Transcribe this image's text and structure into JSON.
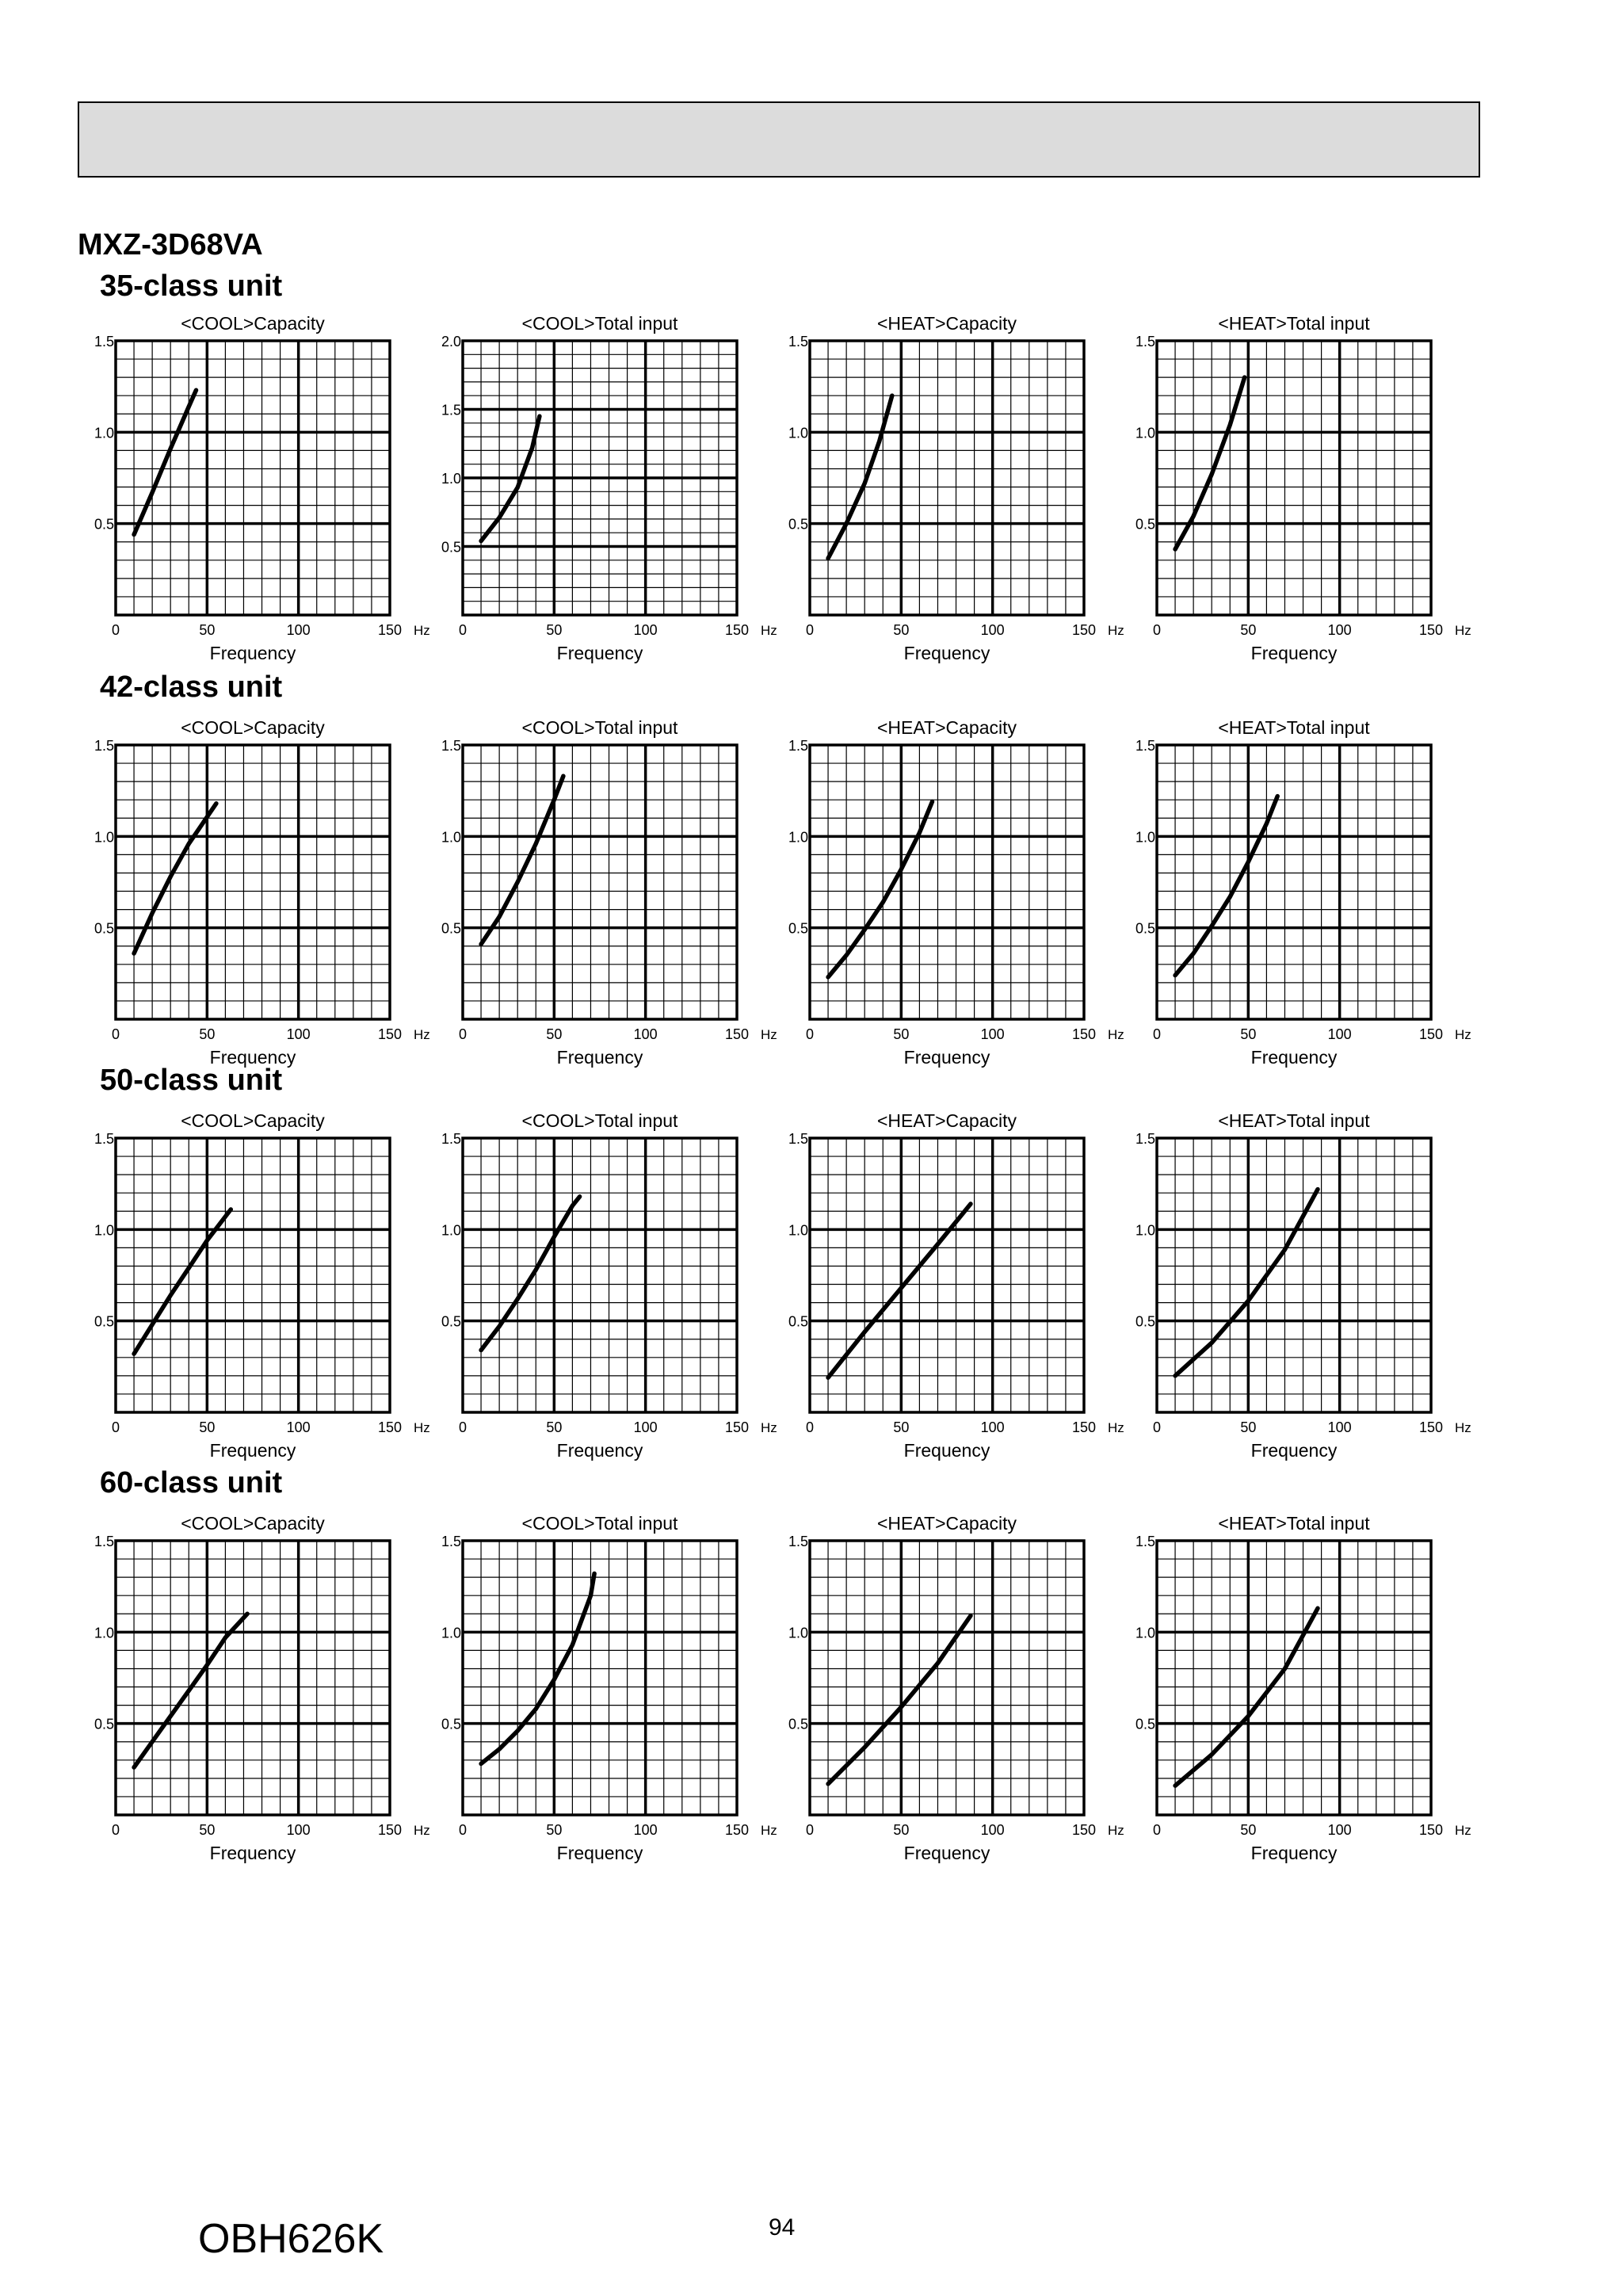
{
  "header": {
    "model": "MXZ-3D68VA"
  },
  "footer": {
    "doc_code": "OBH626K",
    "page_number": "94"
  },
  "chart_common": {
    "xlabel": "Frequency",
    "x_unit": "Hz",
    "x_ticks": [
      "0",
      "50",
      "100",
      "150"
    ],
    "xlim": [
      0,
      150
    ],
    "grid": true
  },
  "sections": [
    {
      "title": "35-class unit",
      "charts": [
        {
          "title": "<COOL>Capacity",
          "ylim": [
            0,
            1.5
          ],
          "y_ticks": [
            "0.5",
            "1.0",
            "1.5"
          ],
          "y_tick_values": [
            0.5,
            1.0,
            1.5
          ]
        },
        {
          "title": "<COOL>Total input",
          "ylim": [
            0,
            2.0
          ],
          "y_ticks": [
            "0.5",
            "1.0",
            "1.5",
            "2.0"
          ],
          "y_tick_values": [
            0.5,
            1.0,
            1.5,
            2.0
          ]
        },
        {
          "title": "<HEAT>Capacity",
          "ylim": [
            0,
            1.5
          ],
          "y_ticks": [
            "0.5",
            "1.0",
            "1.5"
          ],
          "y_tick_values": [
            0.5,
            1.0,
            1.5
          ]
        },
        {
          "title": "<HEAT>Total input",
          "ylim": [
            0,
            1.5
          ],
          "y_ticks": [
            "0.5",
            "1.0",
            "1.5"
          ],
          "y_tick_values": [
            0.5,
            1.0,
            1.5
          ]
        }
      ]
    },
    {
      "title": "42-class unit",
      "charts": [
        {
          "title": "<COOL>Capacity",
          "ylim": [
            0,
            1.5
          ],
          "y_ticks": [
            "0.5",
            "1.0",
            "1.5"
          ],
          "y_tick_values": [
            0.5,
            1.0,
            1.5
          ]
        },
        {
          "title": "<COOL>Total input",
          "ylim": [
            0,
            1.5
          ],
          "y_ticks": [
            "0.5",
            "1.0",
            "1.5"
          ],
          "y_tick_values": [
            0.5,
            1.0,
            1.5
          ]
        },
        {
          "title": "<HEAT>Capacity",
          "ylim": [
            0,
            1.5
          ],
          "y_ticks": [
            "0.5",
            "1.0",
            "1.5"
          ],
          "y_tick_values": [
            0.5,
            1.0,
            1.5
          ]
        },
        {
          "title": "<HEAT>Total input",
          "ylim": [
            0,
            1.5
          ],
          "y_ticks": [
            "0.5",
            "1.0",
            "1.5"
          ],
          "y_tick_values": [
            0.5,
            1.0,
            1.5
          ]
        }
      ]
    },
    {
      "title": "50-class unit",
      "charts": [
        {
          "title": "<COOL>Capacity",
          "ylim": [
            0,
            1.5
          ],
          "y_ticks": [
            "0.5",
            "1.0",
            "1.5"
          ],
          "y_tick_values": [
            0.5,
            1.0,
            1.5
          ]
        },
        {
          "title": "<COOL>Total input",
          "ylim": [
            0,
            1.5
          ],
          "y_ticks": [
            "0.5",
            "1.0",
            "1.5"
          ],
          "y_tick_values": [
            0.5,
            1.0,
            1.5
          ]
        },
        {
          "title": "<HEAT>Capacity",
          "ylim": [
            0,
            1.5
          ],
          "y_ticks": [
            "0.5",
            "1.0",
            "1.5"
          ],
          "y_tick_values": [
            0.5,
            1.0,
            1.5
          ]
        },
        {
          "title": "<HEAT>Total input",
          "ylim": [
            0,
            1.5
          ],
          "y_ticks": [
            "0.5",
            "1.0",
            "1.5"
          ],
          "y_tick_values": [
            0.5,
            1.0,
            1.5
          ]
        }
      ]
    },
    {
      "title": "60-class unit",
      "charts": [
        {
          "title": "<COOL>Capacity",
          "ylim": [
            0,
            1.5
          ],
          "y_ticks": [
            "0.5",
            "1.0",
            "1.5"
          ],
          "y_tick_values": [
            0.5,
            1.0,
            1.5
          ]
        },
        {
          "title": "<COOL>Total input",
          "ylim": [
            0,
            1.5
          ],
          "y_ticks": [
            "0.5",
            "1.0",
            "1.5"
          ],
          "y_tick_values": [
            0.5,
            1.0,
            1.5
          ]
        },
        {
          "title": "<HEAT>Capacity",
          "ylim": [
            0,
            1.5
          ],
          "y_ticks": [
            "0.5",
            "1.0",
            "1.5"
          ],
          "y_tick_values": [
            0.5,
            1.0,
            1.5
          ]
        },
        {
          "title": "<HEAT>Total input",
          "ylim": [
            0,
            1.5
          ],
          "y_ticks": [
            "0.5",
            "1.0",
            "1.5"
          ],
          "y_tick_values": [
            0.5,
            1.0,
            1.5
          ]
        }
      ]
    }
  ],
  "chart_data": [
    {
      "type": "line",
      "title": "<COOL>Capacity",
      "xlabel": "Frequency",
      "xlim": [
        0,
        150
      ],
      "ylim": [
        0,
        1.5
      ],
      "grid": true,
      "x": [
        10,
        20,
        30,
        40,
        44
      ],
      "y": [
        0.44,
        0.67,
        0.91,
        1.14,
        1.23
      ]
    },
    {
      "type": "line",
      "title": "<COOL>Total input",
      "xlabel": "Frequency",
      "xlim": [
        0,
        150
      ],
      "ylim": [
        0,
        2.0
      ],
      "grid": true,
      "x": [
        10,
        20,
        30,
        38,
        42
      ],
      "y": [
        0.54,
        0.71,
        0.93,
        1.22,
        1.45
      ]
    },
    {
      "type": "line",
      "title": "<HEAT>Capacity",
      "xlabel": "Frequency",
      "xlim": [
        0,
        150
      ],
      "ylim": [
        0,
        1.5
      ],
      "grid": true,
      "x": [
        10,
        20,
        30,
        38,
        45
      ],
      "y": [
        0.31,
        0.5,
        0.72,
        0.95,
        1.2
      ]
    },
    {
      "type": "line",
      "title": "<HEAT>Total input",
      "xlabel": "Frequency",
      "xlim": [
        0,
        150
      ],
      "ylim": [
        0,
        1.5
      ],
      "grid": true,
      "x": [
        10,
        20,
        30,
        40,
        48
      ],
      "y": [
        0.36,
        0.54,
        0.77,
        1.04,
        1.3
      ]
    },
    {
      "type": "line",
      "title": "<COOL>Capacity",
      "xlabel": "Frequency",
      "xlim": [
        0,
        150
      ],
      "ylim": [
        0,
        1.5
      ],
      "grid": true,
      "x": [
        10,
        20,
        30,
        40,
        55
      ],
      "y": [
        0.36,
        0.58,
        0.78,
        0.96,
        1.18
      ]
    },
    {
      "type": "line",
      "title": "<COOL>Total input",
      "xlabel": "Frequency",
      "xlim": [
        0,
        150
      ],
      "ylim": [
        0,
        1.5
      ],
      "grid": true,
      "x": [
        10,
        20,
        30,
        40,
        50,
        55
      ],
      "y": [
        0.41,
        0.56,
        0.75,
        0.96,
        1.2,
        1.33
      ]
    },
    {
      "type": "line",
      "title": "<HEAT>Capacity",
      "xlabel": "Frequency",
      "xlim": [
        0,
        150
      ],
      "ylim": [
        0,
        1.5
      ],
      "grid": true,
      "x": [
        10,
        20,
        30,
        40,
        50,
        60,
        67
      ],
      "y": [
        0.23,
        0.35,
        0.49,
        0.64,
        0.82,
        1.02,
        1.19
      ]
    },
    {
      "type": "line",
      "title": "<HEAT>Total input",
      "xlabel": "Frequency",
      "xlim": [
        0,
        150
      ],
      "ylim": [
        0,
        1.5
      ],
      "grid": true,
      "x": [
        10,
        20,
        30,
        40,
        50,
        60,
        66
      ],
      "y": [
        0.24,
        0.36,
        0.51,
        0.67,
        0.86,
        1.07,
        1.22
      ]
    },
    {
      "type": "line",
      "title": "<COOL>Capacity",
      "xlabel": "Frequency",
      "xlim": [
        0,
        150
      ],
      "ylim": [
        0,
        1.5
      ],
      "grid": true,
      "x": [
        10,
        20,
        30,
        40,
        50,
        63
      ],
      "y": [
        0.32,
        0.48,
        0.64,
        0.79,
        0.94,
        1.11
      ]
    },
    {
      "type": "line",
      "title": "<COOL>Total input",
      "xlabel": "Frequency",
      "xlim": [
        0,
        150
      ],
      "ylim": [
        0,
        1.5
      ],
      "grid": true,
      "x": [
        10,
        20,
        30,
        40,
        50,
        60,
        64
      ],
      "y": [
        0.34,
        0.47,
        0.62,
        0.78,
        0.96,
        1.13,
        1.18
      ]
    },
    {
      "type": "line",
      "title": "<HEAT>Capacity",
      "xlabel": "Frequency",
      "xlim": [
        0,
        150
      ],
      "ylim": [
        0,
        1.5
      ],
      "grid": true,
      "x": [
        10,
        30,
        50,
        70,
        88
      ],
      "y": [
        0.19,
        0.44,
        0.68,
        0.92,
        1.14
      ]
    },
    {
      "type": "line",
      "title": "<HEAT>Total input",
      "xlabel": "Frequency",
      "xlim": [
        0,
        150
      ],
      "ylim": [
        0,
        1.5
      ],
      "grid": true,
      "x": [
        10,
        30,
        50,
        70,
        88
      ],
      "y": [
        0.2,
        0.38,
        0.61,
        0.89,
        1.22
      ]
    },
    {
      "type": "line",
      "title": "<COOL>Capacity",
      "xlabel": "Frequency",
      "xlim": [
        0,
        150
      ],
      "ylim": [
        0,
        1.5
      ],
      "grid": true,
      "x": [
        10,
        20,
        30,
        40,
        50,
        60,
        72
      ],
      "y": [
        0.26,
        0.4,
        0.54,
        0.68,
        0.82,
        0.97,
        1.1
      ]
    },
    {
      "type": "line",
      "title": "<COOL>Total input",
      "xlabel": "Frequency",
      "xlim": [
        0,
        150
      ],
      "ylim": [
        0,
        1.5
      ],
      "grid": true,
      "x": [
        10,
        20,
        30,
        40,
        50,
        60,
        70,
        72
      ],
      "y": [
        0.28,
        0.36,
        0.46,
        0.58,
        0.74,
        0.93,
        1.2,
        1.32
      ]
    },
    {
      "type": "line",
      "title": "<HEAT>Capacity",
      "xlabel": "Frequency",
      "xlim": [
        0,
        150
      ],
      "ylim": [
        0,
        1.5
      ],
      "grid": true,
      "x": [
        10,
        30,
        50,
        70,
        88
      ],
      "y": [
        0.17,
        0.37,
        0.59,
        0.83,
        1.09
      ]
    },
    {
      "type": "line",
      "title": "<HEAT>Total input",
      "xlabel": "Frequency",
      "xlim": [
        0,
        150
      ],
      "ylim": [
        0,
        1.5
      ],
      "grid": true,
      "x": [
        10,
        30,
        50,
        70,
        88
      ],
      "y": [
        0.16,
        0.33,
        0.54,
        0.8,
        1.13
      ]
    }
  ]
}
